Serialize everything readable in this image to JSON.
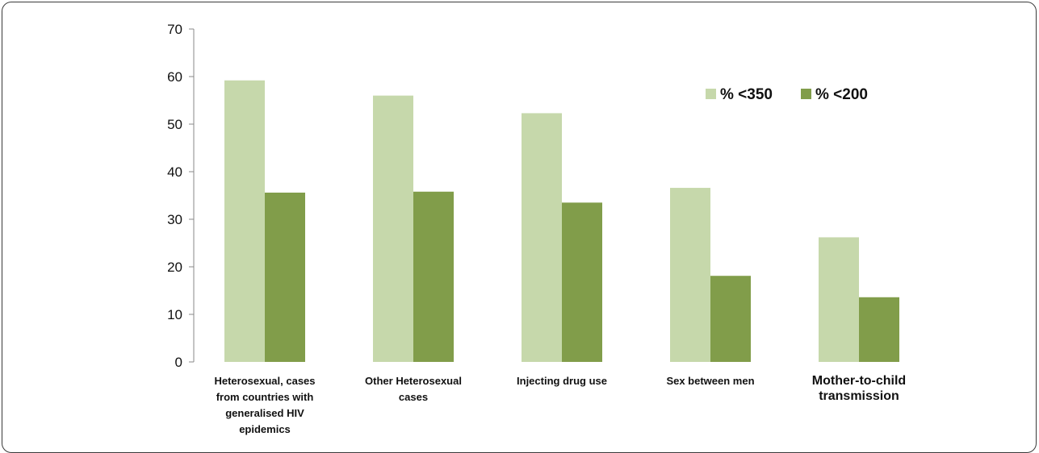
{
  "chart_data": {
    "type": "bar",
    "title": "",
    "xlabel": "",
    "ylabel": "",
    "ylim": [
      0,
      70
    ],
    "yticks": [
      0,
      10,
      20,
      30,
      40,
      50,
      60,
      70
    ],
    "grid": false,
    "legend_position": "top-right",
    "categories": [
      "Heterosexual, cases from countries with generalised HIV epidemics",
      "Other Heterosexual cases",
      "Injecting drug use",
      "Sex between men",
      "Mother-to-child transmission"
    ],
    "category_label_lines": [
      [
        "Heterosexual, cases",
        "from countries with",
        "generalised HIV",
        "epidemics"
      ],
      [
        "Other Heterosexual",
        "cases"
      ],
      [
        "Injecting drug use"
      ],
      [
        "Sex between men"
      ],
      [
        "Mother-to-child",
        "transmission"
      ]
    ],
    "series": [
      {
        "name": "% <350",
        "color": "#c6d8ab",
        "values": [
          59.2,
          56.0,
          52.3,
          36.6,
          26.2
        ]
      },
      {
        "name": "% <200",
        "color": "#819d4a",
        "values": [
          35.6,
          35.8,
          33.5,
          18.1,
          13.6
        ]
      }
    ]
  }
}
